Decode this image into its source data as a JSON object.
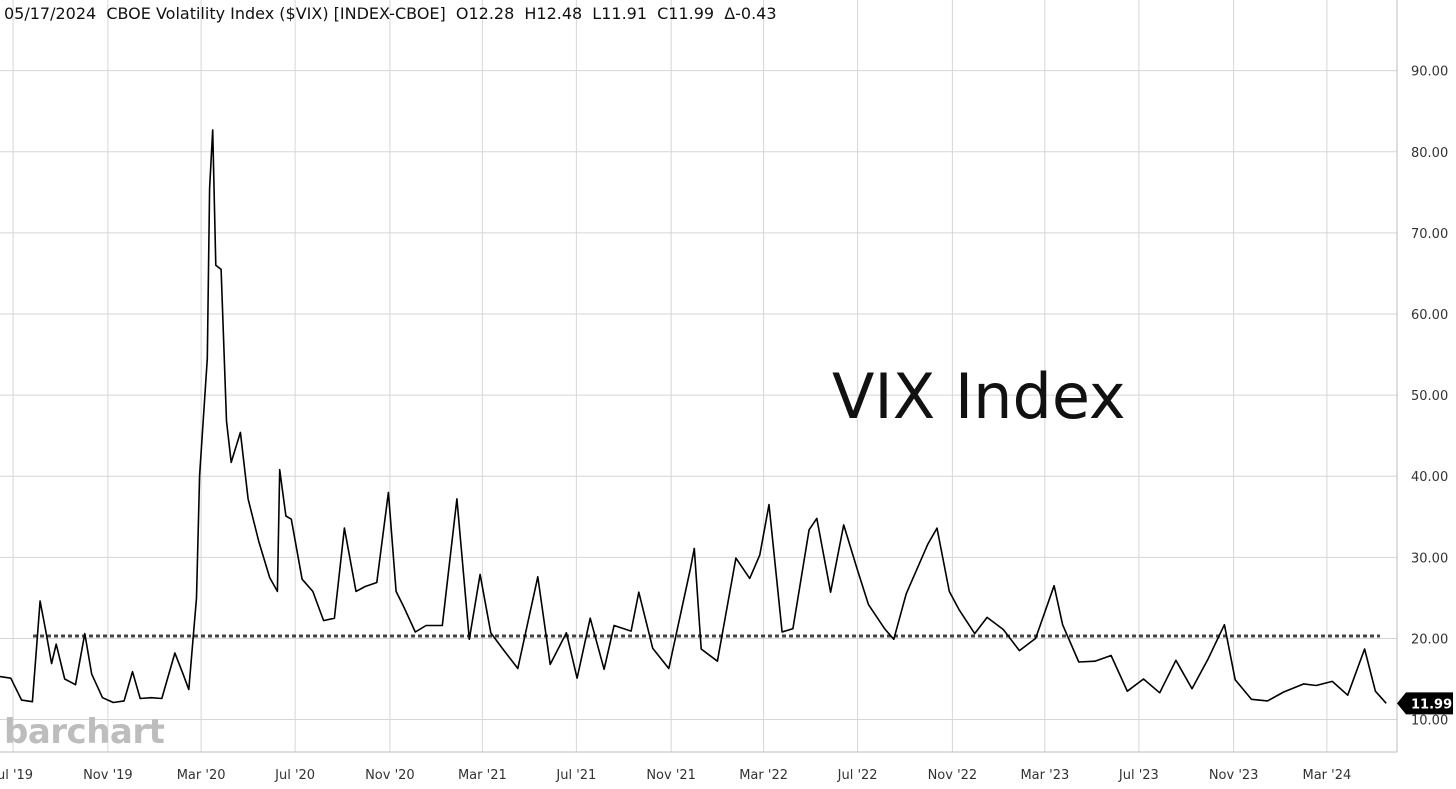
{
  "header": {
    "date": "05/17/2024",
    "instrument": "CBOE Volatility Index ($VIX) [INDEX-CBOE]",
    "open": "O12.28",
    "high": "H12.48",
    "low": "L11.91",
    "close": "C11.99",
    "change": "Δ-0.43"
  },
  "watermark": "barchart",
  "chart_data": {
    "type": "line",
    "annotation": "VIX Index",
    "last_value_label": "11.99",
    "y_ticks": [
      "10.00",
      "20.00",
      "30.00",
      "40.00",
      "50.00",
      "60.00",
      "70.00",
      "80.00",
      "90.00"
    ],
    "ylim": [
      6,
      96
    ],
    "x_ticks": [
      "Jul '19",
      "Nov '19",
      "Mar '20",
      "Jul '20",
      "Nov '20",
      "Mar '21",
      "Jul '21",
      "Nov '21",
      "Mar '22",
      "Jul '22",
      "Nov '22",
      "Mar '23",
      "Jul '23",
      "Nov '23",
      "Mar '24"
    ],
    "xlim": [
      "2019-06-14",
      "2024-05-31"
    ],
    "grid": true,
    "reference_line": {
      "value": 20.3,
      "style": "dotted",
      "color": "#444444"
    },
    "series": [
      {
        "color": "#000000",
        "points": [
          [
            "2019-06-14",
            15.3
          ],
          [
            "2019-06-28",
            15.1
          ],
          [
            "2019-07-12",
            12.4
          ],
          [
            "2019-07-26",
            12.2
          ],
          [
            "2019-08-05",
            24.6
          ],
          [
            "2019-08-12",
            21.1
          ],
          [
            "2019-08-20",
            16.9
          ],
          [
            "2019-08-26",
            19.3
          ],
          [
            "2019-09-06",
            15.0
          ],
          [
            "2019-09-20",
            14.3
          ],
          [
            "2019-10-02",
            20.6
          ],
          [
            "2019-10-11",
            15.6
          ],
          [
            "2019-10-25",
            12.7
          ],
          [
            "2019-11-08",
            12.1
          ],
          [
            "2019-11-22",
            12.3
          ],
          [
            "2019-12-03",
            15.9
          ],
          [
            "2019-12-13",
            12.6
          ],
          [
            "2019-12-27",
            12.7
          ],
          [
            "2020-01-10",
            12.6
          ],
          [
            "2020-01-27",
            18.2
          ],
          [
            "2020-02-07",
            15.5
          ],
          [
            "2020-02-14",
            13.7
          ],
          [
            "2020-02-24",
            25.0
          ],
          [
            "2020-02-28",
            40.1
          ],
          [
            "2020-03-09",
            54.5
          ],
          [
            "2020-03-12",
            75.5
          ],
          [
            "2020-03-16",
            82.7
          ],
          [
            "2020-03-20",
            66.0
          ],
          [
            "2020-03-27",
            65.5
          ],
          [
            "2020-04-03",
            46.8
          ],
          [
            "2020-04-09",
            41.7
          ],
          [
            "2020-04-21",
            45.4
          ],
          [
            "2020-05-01",
            37.2
          ],
          [
            "2020-05-15",
            31.9
          ],
          [
            "2020-05-29",
            27.5
          ],
          [
            "2020-06-08",
            25.8
          ],
          [
            "2020-06-11",
            40.8
          ],
          [
            "2020-06-19",
            35.1
          ],
          [
            "2020-06-26",
            34.7
          ],
          [
            "2020-07-10",
            27.3
          ],
          [
            "2020-07-24",
            25.8
          ],
          [
            "2020-08-07",
            22.2
          ],
          [
            "2020-08-21",
            22.5
          ],
          [
            "2020-09-03",
            33.6
          ],
          [
            "2020-09-18",
            25.8
          ],
          [
            "2020-09-30",
            26.4
          ],
          [
            "2020-10-15",
            26.9
          ],
          [
            "2020-10-30",
            38.0
          ],
          [
            "2020-11-09",
            25.8
          ],
          [
            "2020-11-20",
            23.7
          ],
          [
            "2020-12-04",
            20.8
          ],
          [
            "2020-12-18",
            21.6
          ],
          [
            "2021-01-08",
            21.6
          ],
          [
            "2021-01-27",
            37.2
          ],
          [
            "2021-02-12",
            19.9
          ],
          [
            "2021-02-26",
            27.9
          ],
          [
            "2021-03-12",
            20.7
          ],
          [
            "2021-03-26",
            18.9
          ],
          [
            "2021-04-16",
            16.3
          ],
          [
            "2021-05-12",
            27.6
          ],
          [
            "2021-05-28",
            16.8
          ],
          [
            "2021-06-18",
            20.7
          ],
          [
            "2021-07-02",
            15.1
          ],
          [
            "2021-07-19",
            22.5
          ],
          [
            "2021-08-06",
            16.2
          ],
          [
            "2021-08-19",
            21.6
          ],
          [
            "2021-09-10",
            20.9
          ],
          [
            "2021-09-20",
            25.7
          ],
          [
            "2021-10-08",
            18.8
          ],
          [
            "2021-10-29",
            16.3
          ],
          [
            "2021-11-26",
            28.6
          ],
          [
            "2021-12-01",
            31.1
          ],
          [
            "2021-12-10",
            18.7
          ],
          [
            "2021-12-31",
            17.2
          ],
          [
            "2022-01-24",
            29.9
          ],
          [
            "2022-02-11",
            27.4
          ],
          [
            "2022-02-24",
            30.3
          ],
          [
            "2022-03-08",
            36.5
          ],
          [
            "2022-03-25",
            20.8
          ],
          [
            "2022-04-08",
            21.2
          ],
          [
            "2022-04-29",
            33.4
          ],
          [
            "2022-05-09",
            34.8
          ],
          [
            "2022-05-27",
            25.7
          ],
          [
            "2022-06-13",
            34.0
          ],
          [
            "2022-06-30",
            28.7
          ],
          [
            "2022-07-15",
            24.2
          ],
          [
            "2022-08-05",
            21.2
          ],
          [
            "2022-08-17",
            19.9
          ],
          [
            "2022-09-02",
            25.5
          ],
          [
            "2022-09-30",
            31.6
          ],
          [
            "2022-10-12",
            33.6
          ],
          [
            "2022-10-28",
            25.8
          ],
          [
            "2022-11-10",
            23.5
          ],
          [
            "2022-11-30",
            20.6
          ],
          [
            "2022-12-16",
            22.6
          ],
          [
            "2023-01-06",
            21.1
          ],
          [
            "2023-01-27",
            18.5
          ],
          [
            "2023-02-17",
            20.0
          ],
          [
            "2023-03-13",
            26.5
          ],
          [
            "2023-03-24",
            21.7
          ],
          [
            "2023-04-14",
            17.1
          ],
          [
            "2023-05-05",
            17.2
          ],
          [
            "2023-05-26",
            17.9
          ],
          [
            "2023-06-16",
            13.5
          ],
          [
            "2023-07-07",
            15.0
          ],
          [
            "2023-07-28",
            13.3
          ],
          [
            "2023-08-18",
            17.3
          ],
          [
            "2023-09-08",
            13.8
          ],
          [
            "2023-09-29",
            17.5
          ],
          [
            "2023-10-20",
            21.7
          ],
          [
            "2023-11-03",
            14.9
          ],
          [
            "2023-11-24",
            12.5
          ],
          [
            "2023-12-15",
            12.3
          ],
          [
            "2024-01-05",
            13.4
          ],
          [
            "2024-01-31",
            14.4
          ],
          [
            "2024-02-16",
            14.2
          ],
          [
            "2024-03-08",
            14.7
          ],
          [
            "2024-03-28",
            13.0
          ],
          [
            "2024-04-19",
            18.7
          ],
          [
            "2024-05-03",
            13.5
          ],
          [
            "2024-05-17",
            12.0
          ]
        ]
      }
    ]
  }
}
